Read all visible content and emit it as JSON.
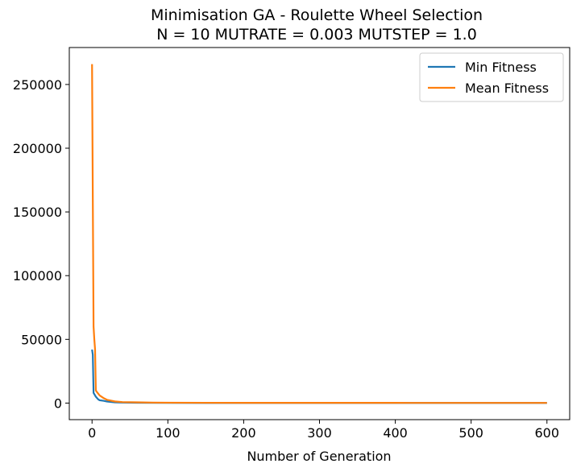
{
  "chart_data": {
    "type": "line",
    "title": "Minimisation GA - Roulette Wheel Selection",
    "subtitle": "N = 10 MUTRATE = 0.003 MUTSTEP = 1.0",
    "xlabel": "Number of Generation",
    "ylabel": "",
    "xlim": [
      -30,
      630
    ],
    "ylim": [
      -13000,
      279000
    ],
    "xticks": [
      0,
      100,
      200,
      300,
      400,
      500,
      600
    ],
    "yticks": [
      0,
      50000,
      100000,
      150000,
      200000,
      250000
    ],
    "grid": false,
    "legend_position": "top-right",
    "series": [
      {
        "name": "Min Fitness",
        "color": "#1f77b4",
        "x": [
          0,
          1,
          2,
          3,
          5,
          8,
          10,
          15,
          20,
          30,
          40,
          60,
          100,
          200,
          300,
          400,
          500,
          600
        ],
        "y": [
          42000,
          38000,
          8000,
          7000,
          5000,
          3000,
          2200,
          1800,
          1200,
          600,
          400,
          250,
          150,
          100,
          100,
          100,
          100,
          100
        ]
      },
      {
        "name": "Mean Fitness",
        "color": "#ff7f0e",
        "x": [
          0,
          1,
          2,
          3,
          4,
          5,
          6,
          8,
          10,
          15,
          20,
          30,
          40,
          60,
          80,
          100,
          200,
          300,
          400,
          500,
          600
        ],
        "y": [
          266000,
          160000,
          60000,
          50000,
          42000,
          10000,
          9000,
          7500,
          6000,
          4000,
          2500,
          1300,
          800,
          600,
          400,
          300,
          200,
          180,
          170,
          160,
          150
        ]
      }
    ]
  }
}
